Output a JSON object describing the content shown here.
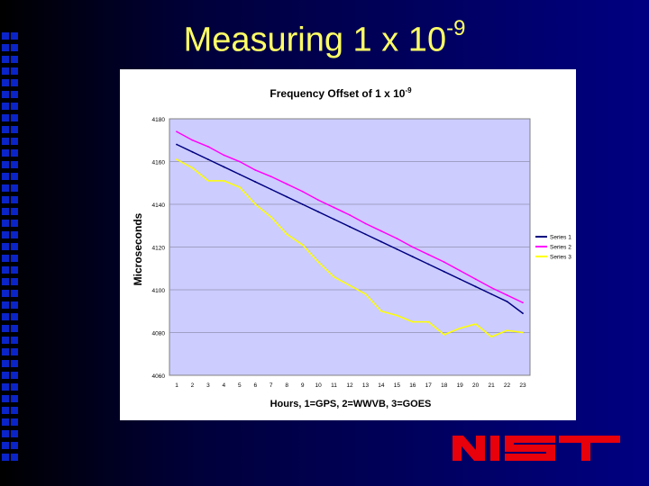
{
  "slide": {
    "title": "Measuring 1 x 10",
    "title_exponent": "-9"
  },
  "logo": {
    "text": "NIST",
    "icon": "nist-logo-icon",
    "color": "#e8000a"
  },
  "colors": {
    "title": "#ffff66",
    "plot_bg": "#ccccff",
    "background": "#000082"
  },
  "chart_data": {
    "type": "line",
    "title": "Frequency Offset of 1 x 10",
    "title_exponent": "-9",
    "xlabel": "Hours, 1=GPS, 2=WWVB, 3=GOES",
    "ylabel": "Microseconds",
    "ylim": [
      4060,
      4180
    ],
    "yticks": [
      4060,
      4080,
      4100,
      4120,
      4140,
      4160,
      4180
    ],
    "x": [
      1,
      2,
      3,
      4,
      5,
      6,
      7,
      8,
      9,
      10,
      11,
      12,
      13,
      14,
      15,
      16,
      17,
      18,
      19,
      20,
      21,
      22,
      23
    ],
    "grid": "horizontal",
    "legend_position": "right",
    "series": [
      {
        "name": "Series 1",
        "color": "#000080",
        "values": [
          4168.0,
          4164.5,
          4161.0,
          4157.5,
          4154.0,
          4150.5,
          4147.0,
          4143.5,
          4140.0,
          4136.5,
          4133.0,
          4129.5,
          4126.0,
          4122.5,
          4119.0,
          4115.5,
          4112.0,
          4108.5,
          4105.0,
          4101.5,
          4098.0,
          4094.5,
          4089.0
        ]
      },
      {
        "name": "Series 2",
        "color": "#ff00ff",
        "values": [
          4174.0,
          4170.0,
          4167.0,
          4163.0,
          4160.0,
          4156.0,
          4153.0,
          4149.5,
          4146.0,
          4142.0,
          4138.5,
          4135.0,
          4131.0,
          4127.5,
          4124.0,
          4120.0,
          4116.5,
          4113.0,
          4109.0,
          4105.0,
          4101.0,
          4097.5,
          4094.0
        ]
      },
      {
        "name": "Series 3",
        "color": "#ffff00",
        "values": [
          4161.0,
          4157.0,
          4151.0,
          4151.0,
          4148.0,
          4140.0,
          4134.0,
          4126.0,
          4121.0,
          4113.0,
          4106.0,
          4102.0,
          4098.0,
          4090.0,
          4088.0,
          4085.0,
          4085.0,
          4079.0,
          4082.0,
          4084.0,
          4078.0,
          4081.0,
          4080.0
        ]
      }
    ]
  }
}
